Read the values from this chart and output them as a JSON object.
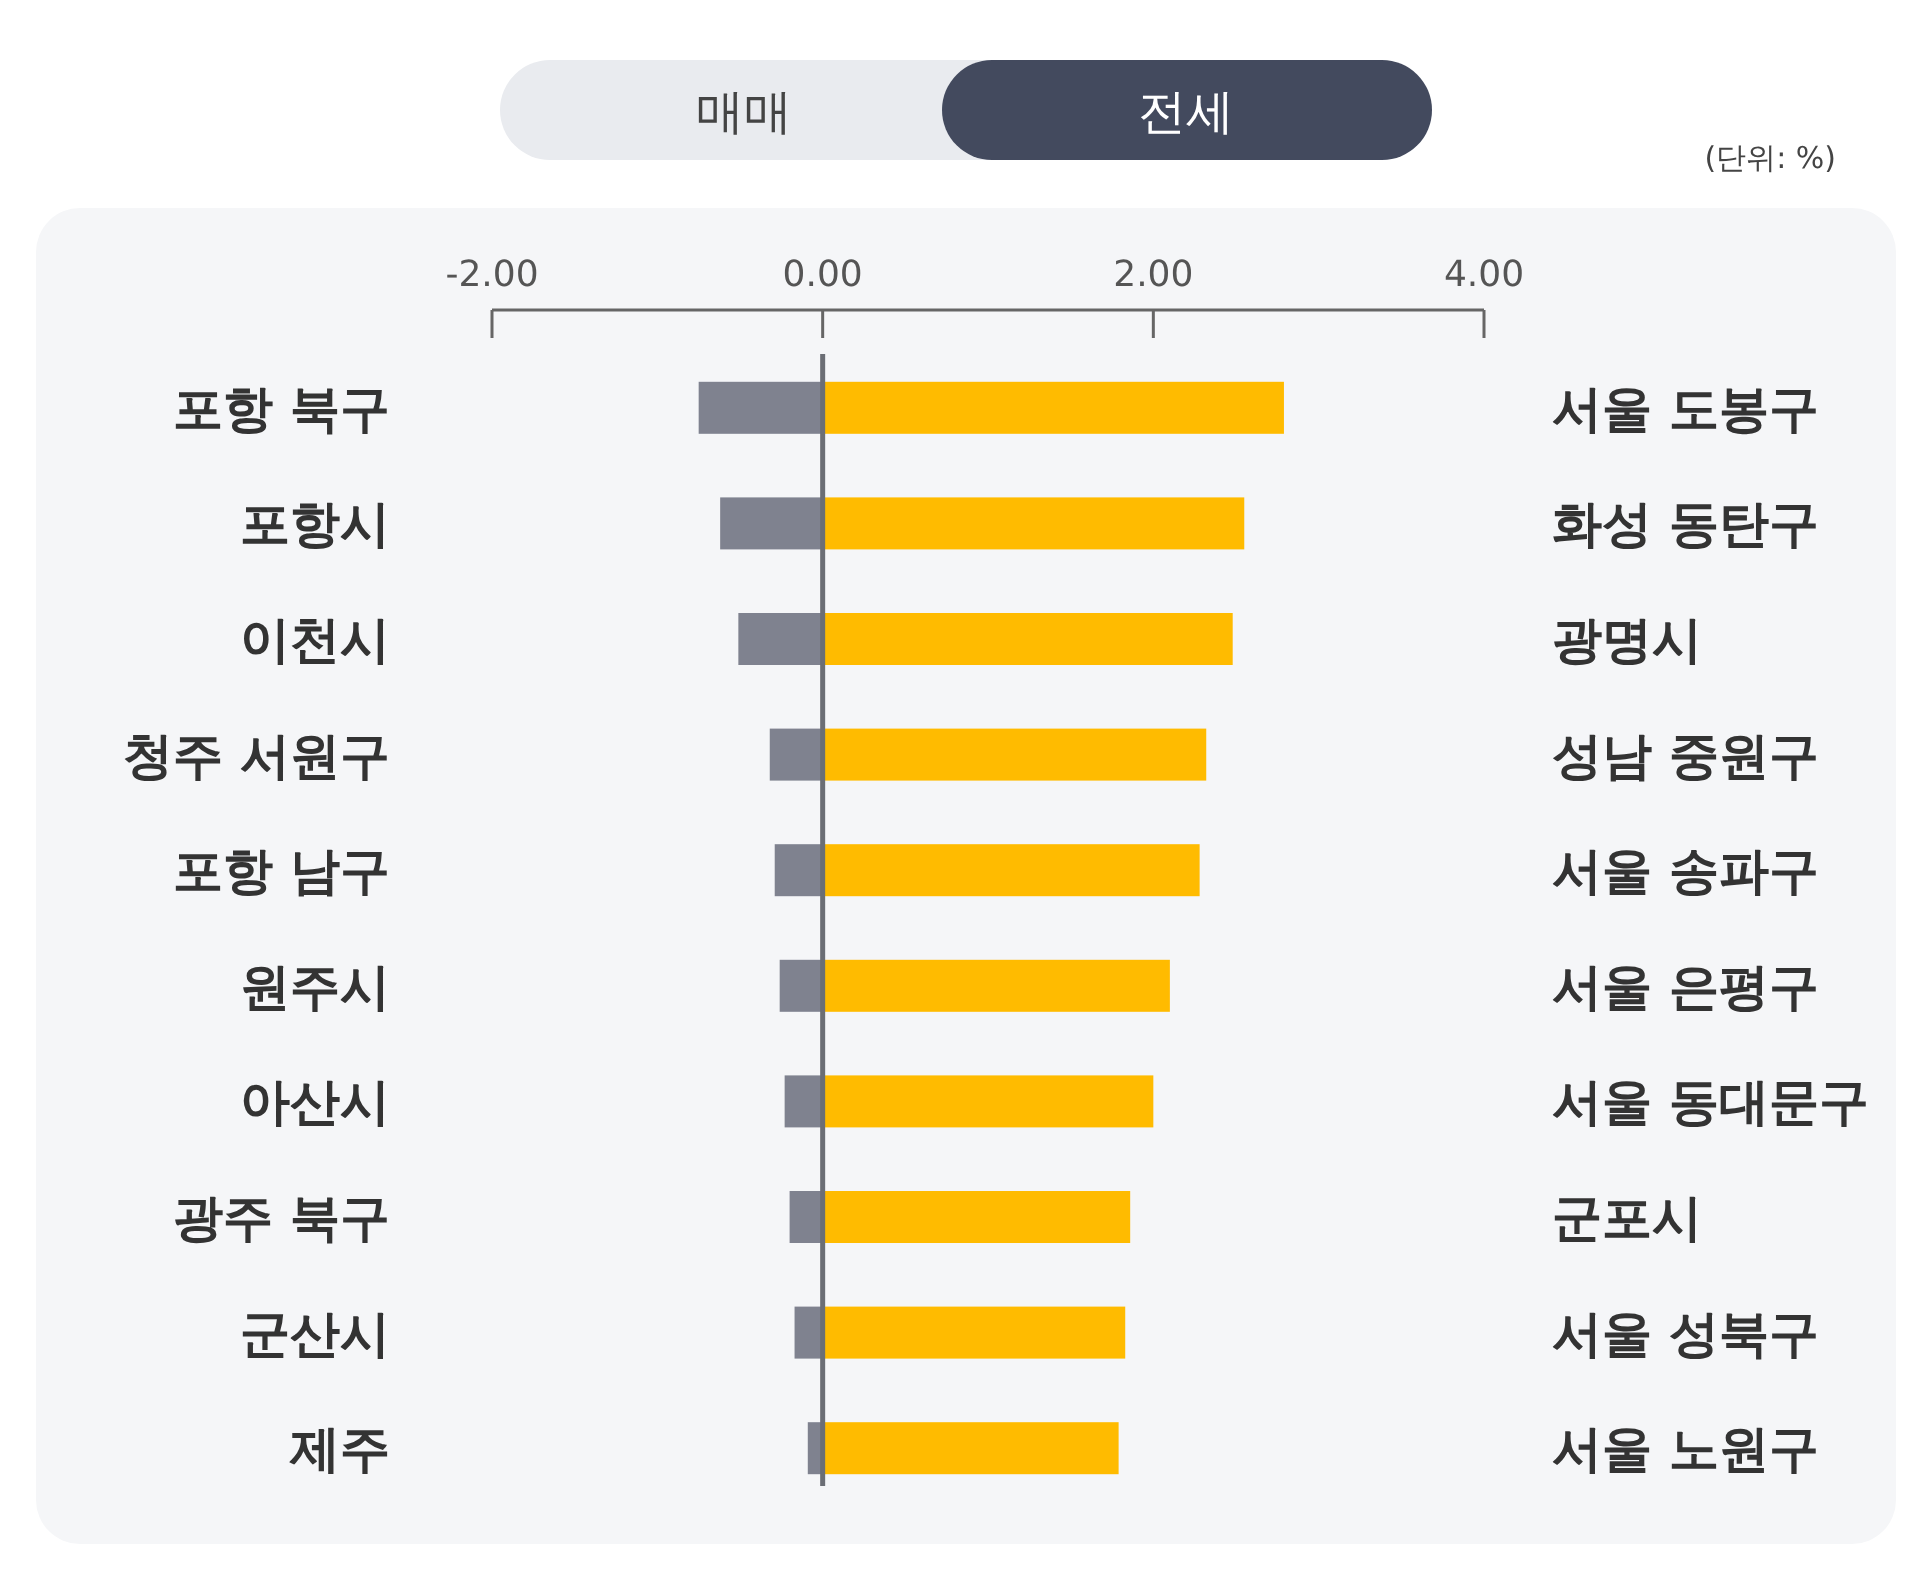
{
  "chart_data": {
    "type": "bar",
    "orientation": "horizontal",
    "stacked": true,
    "categories": [
      "포항 북구",
      "포항시",
      "이천시",
      "청주 서원구",
      "포항 남구",
      "원주시",
      "아산시",
      "광주 북구",
      "군산시",
      "제주"
    ],
    "y2_categories": [
      "서울 도봉구",
      "화성 동탄구",
      "광명시",
      "성남 중원구",
      "서울 송파구",
      "서울 은평구",
      "서울 동대문구",
      "군포시",
      "서울 성북구",
      "서울 노원구"
    ],
    "series": [
      {
        "color": "#7f828f",
        "values": [
          -0.75,
          -0.62,
          -0.51,
          -0.32,
          -0.29,
          -0.26,
          -0.23,
          -0.2,
          -0.17,
          -0.09
        ]
      },
      {
        "color": "#ffbb00",
        "values": [
          2.79,
          2.55,
          2.48,
          2.32,
          2.28,
          2.1,
          2.0,
          1.86,
          1.83,
          1.79
        ]
      }
    ],
    "xlim": [
      -2,
      4
    ],
    "xticks": [
      {
        "value": -2,
        "label": "-2.00"
      },
      {
        "value": 0,
        "label": "0.00"
      },
      {
        "value": 2,
        "label": "2.00"
      },
      {
        "value": 4,
        "label": "4.00"
      }
    ],
    "ref_lines": [
      {
        "axis": "x",
        "value": 0,
        "color": "#6b6e75"
      }
    ],
    "grid": false,
    "annotations": [
      "매매",
      "전세",
      "(단위: %)"
    ]
  }
}
